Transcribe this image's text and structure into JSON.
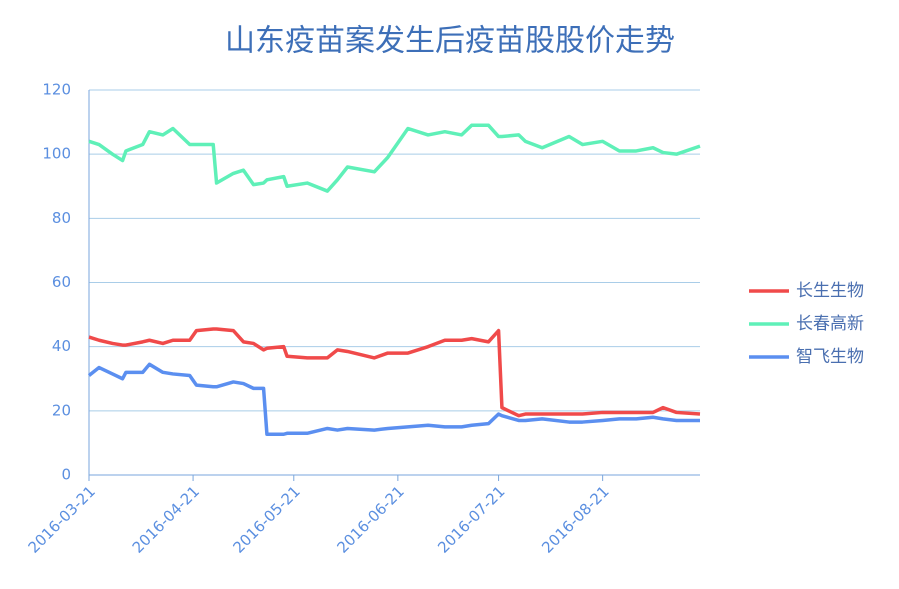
{
  "chart_data": {
    "type": "line",
    "title": "山东疫苗案发生后疫苗股股价走势",
    "x": [
      "2016-03-21",
      "2016-03-24",
      "2016-03-28",
      "2016-03-31",
      "2016-04-01",
      "2016-04-06",
      "2016-04-08",
      "2016-04-12",
      "2016-04-15",
      "2016-04-20",
      "2016-04-22",
      "2016-04-27",
      "2016-04-28",
      "2016-05-03",
      "2016-05-06",
      "2016-05-09",
      "2016-05-12",
      "2016-05-13",
      "2016-05-18",
      "2016-05-19",
      "2016-05-25",
      "2016-05-31",
      "2016-06-03",
      "2016-06-06",
      "2016-06-14",
      "2016-06-18",
      "2016-06-24",
      "2016-06-30",
      "2016-07-05",
      "2016-07-10",
      "2016-07-13",
      "2016-07-18",
      "2016-07-21",
      "2016-07-22",
      "2016-07-27",
      "2016-07-29",
      "2016-08-03",
      "2016-08-11",
      "2016-08-15",
      "2016-08-21",
      "2016-08-26",
      "2016-08-31",
      "2016-09-05",
      "2016-09-08",
      "2016-09-12",
      "2016-09-19"
    ],
    "series": [
      {
        "name": "长生生物",
        "color": "#f04a4a",
        "values": [
          43,
          42,
          41,
          40.5,
          40.5,
          41.5,
          42,
          41,
          42,
          42,
          45,
          45.5,
          45.5,
          45,
          41.5,
          41,
          39,
          39.5,
          40,
          37,
          36.5,
          36.5,
          39,
          38.5,
          36.5,
          38,
          38,
          40,
          42,
          42,
          42.5,
          41.5,
          45,
          21,
          18.5,
          19,
          19,
          19,
          19,
          19.5,
          19.5,
          19.5,
          19.5,
          21,
          19.5,
          19
        ]
      },
      {
        "name": "长春高新",
        "color": "#5ff0b8",
        "values": [
          104,
          103,
          100,
          98,
          101,
          103,
          107,
          106,
          108,
          103,
          103,
          103,
          91,
          94,
          95,
          90.5,
          91,
          92,
          93,
          90,
          91,
          88.5,
          92,
          96,
          94.5,
          99,
          108,
          106,
          107,
          106,
          109,
          109,
          105.5,
          105.5,
          106,
          104,
          102,
          105.5,
          103,
          104,
          101,
          101,
          102,
          100.5,
          100,
          102.5
        ]
      },
      {
        "name": "智飞生物",
        "color": "#5b8ff0",
        "values": [
          31,
          33.5,
          31.5,
          30,
          32,
          32,
          34.5,
          32,
          31.5,
          31,
          28,
          27.5,
          27.5,
          29,
          28.5,
          27,
          27,
          12.7,
          12.7,
          13,
          13,
          14.5,
          14,
          14.5,
          14,
          14.5,
          15,
          15.5,
          15,
          15,
          15.5,
          16,
          19,
          18.5,
          17,
          17,
          17.5,
          16.5,
          16.5,
          17,
          17.5,
          17.5,
          18,
          17.5,
          17,
          17
        ]
      }
    ],
    "xlim": [
      "2016-03-21",
      "2016-09-19"
    ],
    "xticks": [
      "2016-03-21",
      "2016-04-21",
      "2016-05-21",
      "2016-06-21",
      "2016-07-21",
      "2016-08-21"
    ],
    "ylim": [
      0,
      120
    ],
    "yticks": [
      0,
      20,
      40,
      60,
      80,
      100,
      120
    ],
    "grid": true
  }
}
